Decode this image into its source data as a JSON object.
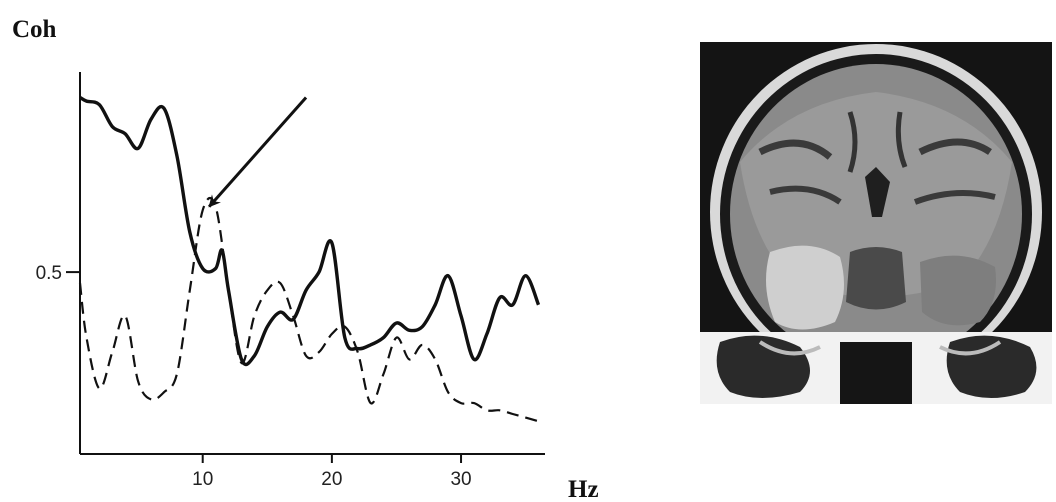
{
  "chart_data": {
    "type": "line",
    "title": "",
    "ylabel": "Coh",
    "xlabel": "Hz",
    "xlim": [
      0.5,
      36.5
    ],
    "ylim": [
      0,
      1.05
    ],
    "xticks": [
      10,
      20,
      30
    ],
    "yticks": [
      0.5
    ],
    "grid": false,
    "annotations": [
      {
        "type": "arrow",
        "target_x": 10.5,
        "target_y": 0.68,
        "from_x": 18,
        "from_y": 0.98
      }
    ],
    "series": [
      {
        "style": "solid",
        "x": [
          0.5,
          1,
          2,
          3,
          4,
          5,
          6,
          7,
          8,
          9,
          10,
          11,
          11.5,
          12,
          13,
          14,
          15,
          16,
          17,
          18,
          19,
          20,
          21,
          22,
          23,
          24,
          25,
          26,
          27,
          28,
          29,
          30,
          31,
          32,
          33,
          34,
          35,
          36
        ],
        "y": [
          0.98,
          0.97,
          0.96,
          0.9,
          0.88,
          0.84,
          0.92,
          0.95,
          0.82,
          0.61,
          0.51,
          0.51,
          0.56,
          0.45,
          0.26,
          0.27,
          0.35,
          0.39,
          0.37,
          0.45,
          0.5,
          0.58,
          0.32,
          0.29,
          0.3,
          0.32,
          0.36,
          0.34,
          0.35,
          0.41,
          0.49,
          0.38,
          0.26,
          0.33,
          0.43,
          0.41,
          0.49,
          0.41
        ]
      },
      {
        "style": "dashed",
        "x": [
          0.5,
          1,
          2,
          3,
          4,
          5,
          6,
          7,
          8,
          9,
          10,
          11,
          12,
          13,
          14,
          15,
          16,
          17,
          18,
          19,
          20,
          21,
          22,
          23,
          24,
          25,
          26,
          27,
          28,
          29,
          30,
          31,
          32,
          33,
          34,
          35,
          36
        ],
        "y": [
          0.47,
          0.32,
          0.18,
          0.28,
          0.38,
          0.2,
          0.15,
          0.17,
          0.22,
          0.45,
          0.67,
          0.68,
          0.45,
          0.25,
          0.38,
          0.45,
          0.47,
          0.38,
          0.27,
          0.28,
          0.33,
          0.35,
          0.28,
          0.14,
          0.22,
          0.32,
          0.26,
          0.3,
          0.26,
          0.17,
          0.14,
          0.14,
          0.12,
          0.12,
          0.11,
          0.1,
          0.09
        ]
      }
    ]
  },
  "image_panel": {
    "icon": "mri-brain-coronal-scan"
  }
}
